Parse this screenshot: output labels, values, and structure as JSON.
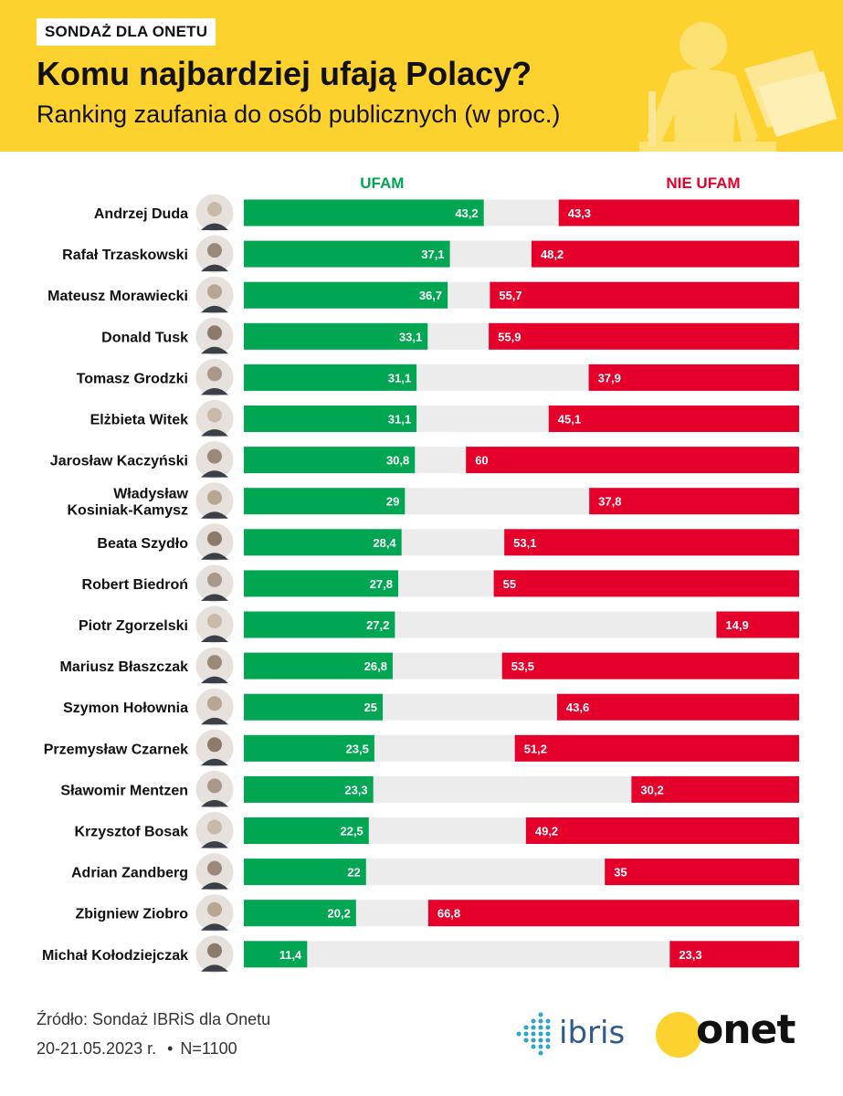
{
  "header": {
    "tag": "SONDAŻ DLA ONETU",
    "title": "Komu najbardziej ufają Polacy?",
    "subtitle": "Ranking zaufania do osób publicznych (w proc.)"
  },
  "colors": {
    "yellow": "#fdd22e",
    "trust_green": "#00a651",
    "distrust_red": "#e4002b",
    "track_gray": "#ececec"
  },
  "chart_data": {
    "type": "bar",
    "orientation": "horizontal",
    "stacked": "diverging",
    "xlim": [
      0,
      100
    ],
    "categories": [
      "Andrzej Duda",
      "Rafał Trzaskowski",
      "Mateusz Morawiecki",
      "Donald Tusk",
      "Tomasz Grodzki",
      "Elżbieta Witek",
      "Jarosław Kaczyński",
      "Władysław Kosiniak-Kamysz",
      "Beata Szydło",
      "Robert Biedroń",
      "Piotr Zgorzelski",
      "Mariusz Błaszczak",
      "Szymon Hołownia",
      "Przemysław Czarnek",
      "Sławomir Mentzen",
      "Krzysztof Bosak",
      "Adrian Zandberg",
      "Zbigniew Ziobro",
      "Michał Kołodziejczak"
    ],
    "category_lines": [
      [
        "Andrzej Duda"
      ],
      [
        "Rafał Trzaskowski"
      ],
      [
        "Mateusz Morawiecki"
      ],
      [
        "Donald Tusk"
      ],
      [
        "Tomasz Grodzki"
      ],
      [
        "Elżbieta Witek"
      ],
      [
        "Jarosław Kaczyński"
      ],
      [
        "Władysław",
        "Kosiniak-Kamysz"
      ],
      [
        "Beata Szydło"
      ],
      [
        "Robert Biedroń"
      ],
      [
        "Piotr Zgorzelski"
      ],
      [
        "Mariusz Błaszczak"
      ],
      [
        "Szymon Hołownia"
      ],
      [
        "Przemysław Czarnek"
      ],
      [
        "Sławomir Mentzen"
      ],
      [
        "Krzysztof Bosak"
      ],
      [
        "Adrian Zandberg"
      ],
      [
        "Zbigniew Ziobro"
      ],
      [
        "Michał Kołodziejczak"
      ]
    ],
    "series": [
      {
        "name": "UFAM",
        "color": "#00a651",
        "values": [
          43.2,
          37.1,
          36.7,
          33.1,
          31.1,
          31.1,
          30.8,
          29,
          28.4,
          27.8,
          27.2,
          26.8,
          25,
          23.5,
          23.3,
          22.5,
          22,
          20.2,
          11.4
        ],
        "labels": [
          "43,2",
          "37,1",
          "36,7",
          "33,1",
          "31,1",
          "31,1",
          "30,8",
          "29",
          "28,4",
          "27,8",
          "27,2",
          "26,8",
          "25",
          "23,5",
          "23,3",
          "22,5",
          "22",
          "20,2",
          "11,4"
        ]
      },
      {
        "name": "NIE UFAM",
        "color": "#e4002b",
        "values": [
          43.3,
          48.2,
          55.7,
          55.9,
          37.9,
          45.1,
          60,
          37.8,
          53.1,
          55,
          14.9,
          53.5,
          43.6,
          51.2,
          30.2,
          49.2,
          35,
          66.8,
          23.3
        ],
        "labels": [
          "43,3",
          "48,2",
          "55,7",
          "55,9",
          "37,9",
          "45,1",
          "60",
          "37,8",
          "53,1",
          "55",
          "14,9",
          "53,5",
          "43,6",
          "51,2",
          "30,2",
          "49,2",
          "35",
          "66,8",
          "23,3"
        ]
      }
    ],
    "legend_placement": "top"
  },
  "footer": {
    "source": "Źródło: Sondaż IBRiS dla Onetu",
    "date": "20-21.05.2023 r.",
    "bullet": "•",
    "sample": "N=1100"
  },
  "logos": {
    "ibris": "ibris",
    "onet": "onet"
  }
}
